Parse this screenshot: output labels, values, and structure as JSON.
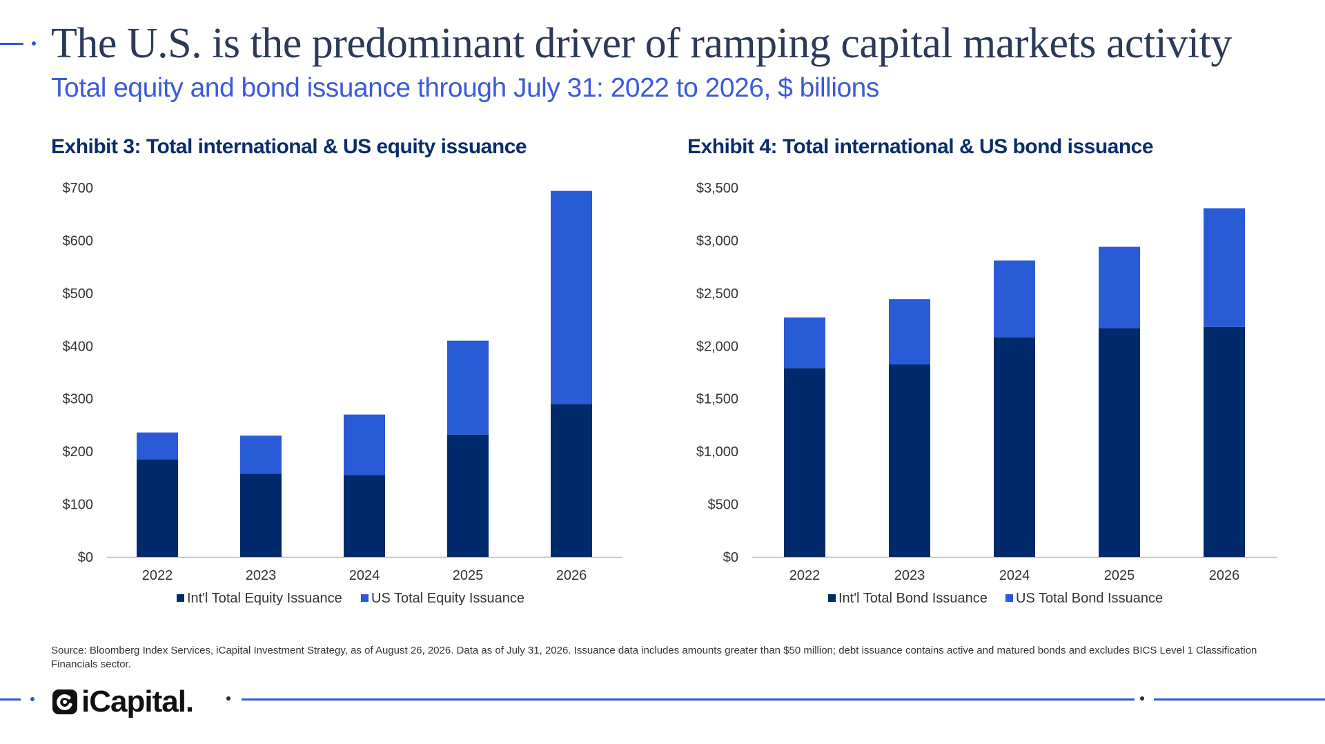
{
  "header": {
    "title": "The U.S. is the predominant driver of ramping capital markets activity",
    "subtitle": "Total equity and bond issuance through July 31: 2022 to 2026, $ billions"
  },
  "colors": {
    "dark_series": "#002a6b",
    "light_series": "#2a5bd7",
    "title": "#2b3a55",
    "subtitle": "#3b5bdb",
    "exhibit_title": "#0b2c6b",
    "accent_line": "#2f55d4"
  },
  "chart_data": [
    {
      "type": "bar",
      "stacked": true,
      "title": "Exhibit 3: Total international & US equity issuance",
      "categories": [
        "2022",
        "2023",
        "2024",
        "2025",
        "2026"
      ],
      "series": [
        {
          "name": "Int'l Total Equity Issuance",
          "values": [
            185,
            158,
            155,
            232,
            290
          ],
          "color": "#002a6b"
        },
        {
          "name": "US Total Equity Issuance",
          "values": [
            51,
            72,
            115,
            178,
            404
          ],
          "color": "#2a5bd7"
        }
      ],
      "ylim": [
        0,
        700
      ],
      "yticks": [
        0,
        100,
        200,
        300,
        400,
        500,
        600,
        700
      ],
      "ytick_labels": [
        "$0",
        "$100",
        "$200",
        "$300",
        "$400",
        "$500",
        "$600",
        "$700"
      ],
      "grid": false,
      "legend_position": "bottom"
    },
    {
      "type": "bar",
      "stacked": true,
      "title": "Exhibit 4: Total international & US bond issuance",
      "categories": [
        "2022",
        "2023",
        "2024",
        "2025",
        "2026"
      ],
      "series": [
        {
          "name": "Int'l Total Bond Issuance",
          "values": [
            1790,
            1825,
            2080,
            2170,
            2180
          ],
          "color": "#002a6b"
        },
        {
          "name": "US Total Bond Issuance",
          "values": [
            480,
            620,
            730,
            770,
            1125
          ],
          "color": "#2a5bd7"
        }
      ],
      "ylim": [
        0,
        3500
      ],
      "yticks": [
        0,
        500,
        1000,
        1500,
        2000,
        2500,
        3000,
        3500
      ],
      "ytick_labels": [
        "$0",
        "$500",
        "$1,000",
        "$1,500",
        "$2,000",
        "$2,500",
        "$3,000",
        "$3,500"
      ],
      "grid": false,
      "legend_position": "bottom"
    }
  ],
  "footer": {
    "source": "Source: Bloomberg Index Services, iCapital Investment Strategy, as of August 26, 2026. Data as of July 31, 2026. Issuance data includes amounts greater than $50 million; debt issuance contains active and matured bonds and excludes BICS Level 1 Classification Financials sector.",
    "logo_text": "iCapital."
  }
}
